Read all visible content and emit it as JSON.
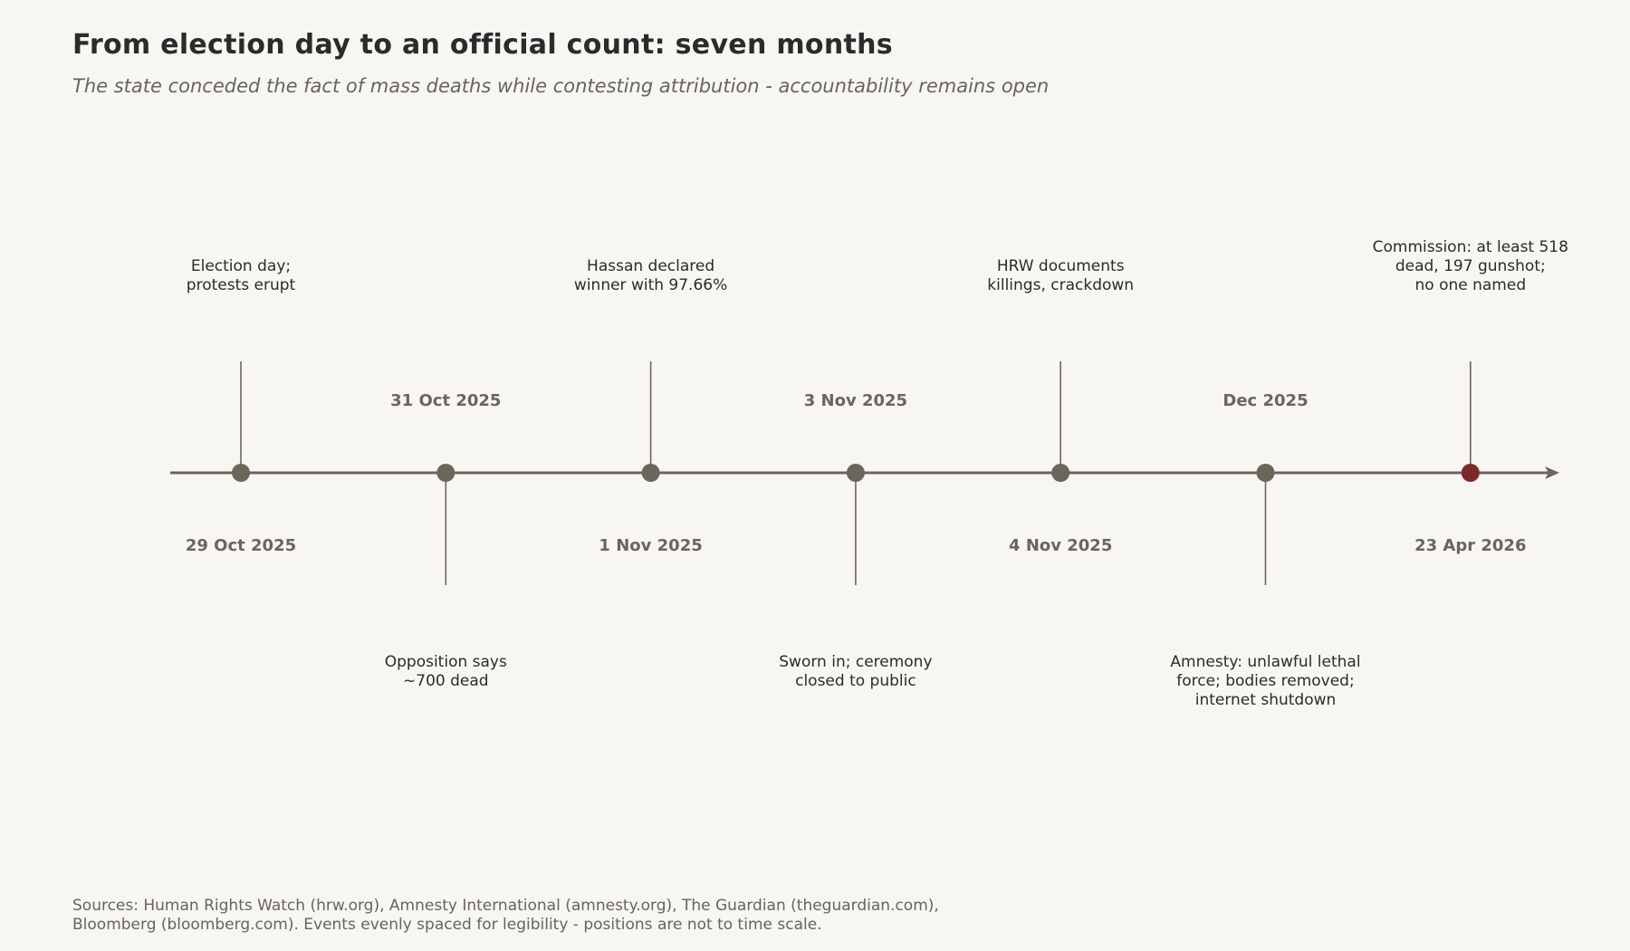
{
  "title": "From election day to an official count: seven months",
  "subtitle": "The state conceded the fact of mass deaths while contesting attribution - accountability remains open",
  "colors": {
    "background": "#f8f6f2",
    "axis": "#6b655c",
    "marker": "#6b655c",
    "highlight_marker": "#7a2a2a",
    "date_text": "#6b655c",
    "event_text": "#2b2b2b"
  },
  "events": [
    {
      "date": "29 Oct 2025",
      "lines": [
        "Election day;",
        "protests erupt"
      ],
      "side": "above",
      "highlight": false
    },
    {
      "date": "31 Oct 2025",
      "lines": [
        "Opposition says",
        "~700 dead"
      ],
      "side": "below",
      "highlight": false
    },
    {
      "date": "1 Nov 2025",
      "lines": [
        "Hassan declared",
        "winner with 97.66%"
      ],
      "side": "above",
      "highlight": false
    },
    {
      "date": "3 Nov 2025",
      "lines": [
        "Sworn in; ceremony",
        "closed to public"
      ],
      "side": "below",
      "highlight": false
    },
    {
      "date": "4 Nov 2025",
      "lines": [
        "HRW documents",
        "killings, crackdown"
      ],
      "side": "above",
      "highlight": false
    },
    {
      "date": "Dec 2025",
      "lines": [
        "Amnesty: unlawful lethal",
        "force; bodies removed;",
        "internet shutdown"
      ],
      "side": "below",
      "highlight": false
    },
    {
      "date": "23 Apr 2026",
      "lines": [
        "Commission: at least 518",
        "dead, 197 gunshot;",
        "no one named"
      ],
      "side": "above",
      "highlight": true
    }
  ],
  "sources": {
    "line1": "Sources: Human Rights Watch (hrw.org), Amnesty International (amnesty.org), The Guardian (theguardian.com),",
    "line2": "Bloomberg (bloomberg.com). Events evenly spaced for legibility - positions are not to time scale."
  }
}
